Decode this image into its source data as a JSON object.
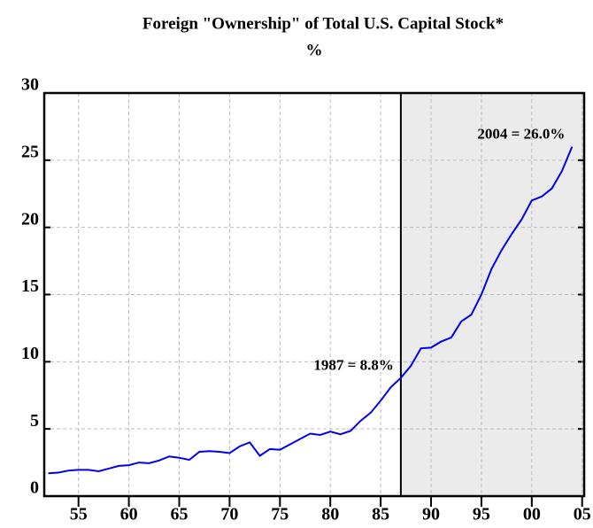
{
  "chart_data": {
    "type": "line",
    "title": "Foreign \"Ownership\" of Total U.S. Capital Stock*",
    "subtitle": "%",
    "x": [
      1952,
      1953,
      1954,
      1955,
      1956,
      1957,
      1958,
      1959,
      1960,
      1961,
      1962,
      1963,
      1964,
      1965,
      1966,
      1967,
      1968,
      1969,
      1970,
      1971,
      1972,
      1973,
      1974,
      1975,
      1976,
      1977,
      1978,
      1979,
      1980,
      1981,
      1982,
      1983,
      1984,
      1985,
      1986,
      1987,
      1988,
      1989,
      1990,
      1991,
      1992,
      1993,
      1994,
      1995,
      1996,
      1997,
      1998,
      1999,
      2000,
      2001,
      2002,
      2003,
      2004
    ],
    "series": [
      {
        "name": "Foreign ownership",
        "color": "#0000ee",
        "values": [
          1.7,
          1.75,
          1.9,
          1.95,
          1.95,
          1.85,
          2.05,
          2.25,
          2.3,
          2.5,
          2.45,
          2.65,
          2.95,
          2.85,
          2.7,
          3.3,
          3.35,
          3.3,
          3.2,
          3.7,
          4.0,
          3.0,
          3.5,
          3.45,
          3.85,
          4.25,
          4.65,
          4.55,
          4.8,
          4.6,
          4.85,
          5.6,
          6.2,
          7.1,
          8.1,
          8.8,
          9.7,
          11.0,
          11.05,
          11.5,
          11.8,
          13.0,
          13.5,
          15.0,
          16.9,
          18.3,
          19.5,
          20.6,
          22.0,
          22.3,
          22.9,
          24.2,
          26.0
        ]
      }
    ],
    "xlim": [
      1951.6,
      2005.2
    ],
    "xticks": [
      {
        "value": 1955,
        "label": "55"
      },
      {
        "value": 1960,
        "label": "60"
      },
      {
        "value": 1965,
        "label": "65"
      },
      {
        "value": 1970,
        "label": "70"
      },
      {
        "value": 1975,
        "label": "75"
      },
      {
        "value": 1980,
        "label": "80"
      },
      {
        "value": 1985,
        "label": "85"
      },
      {
        "value": 1990,
        "label": "90"
      },
      {
        "value": 1995,
        "label": "95"
      },
      {
        "value": 2000,
        "label": "00"
      },
      {
        "value": 2005,
        "label": "05"
      }
    ],
    "ylim": [
      0,
      30
    ],
    "yticks": [
      0,
      5,
      10,
      15,
      20,
      25,
      30
    ],
    "grid": true,
    "shaded_from": 1987,
    "annotations": [
      {
        "text": "1987 = 8.8%",
        "x": 1987,
        "y": 8.8
      },
      {
        "text": "2004 = 26.0%",
        "x": 2004,
        "y": 26.0
      }
    ]
  }
}
